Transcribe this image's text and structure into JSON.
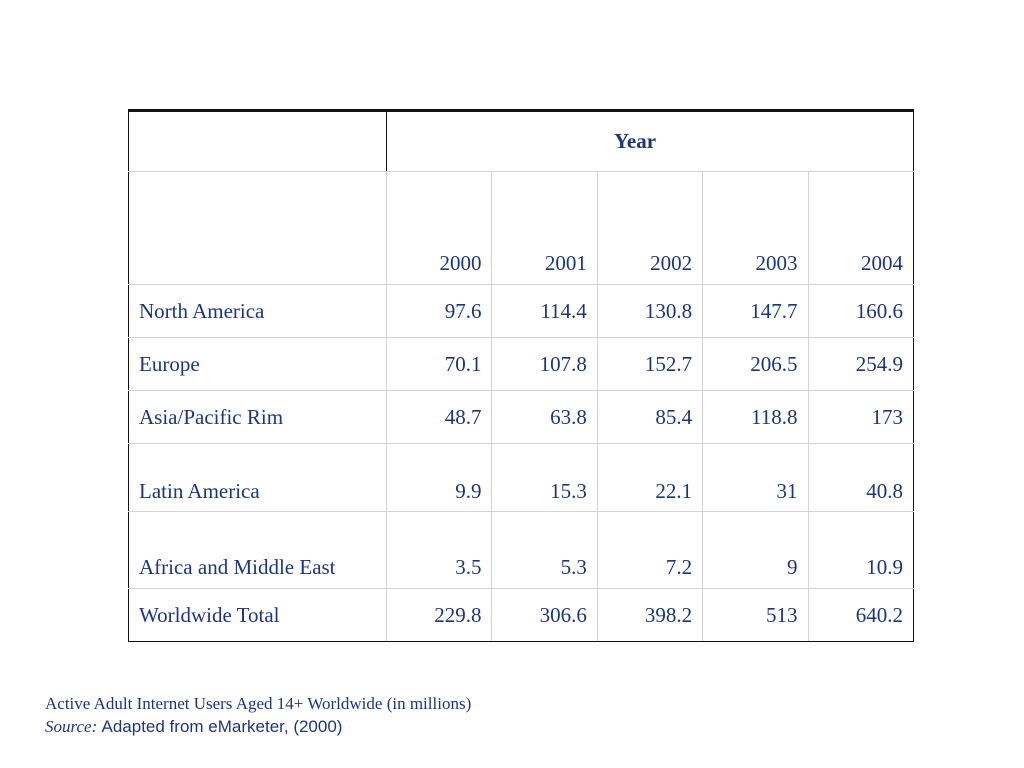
{
  "chart_data": {
    "type": "table",
    "header_group": "Year",
    "columns": [
      "2000",
      "2001",
      "2002",
      "2003",
      "2004"
    ],
    "rows": [
      {
        "label": "North America",
        "values": [
          "97.6",
          "114.4",
          "130.8",
          "147.7",
          "160.6"
        ]
      },
      {
        "label": "Europe",
        "values": [
          "70.1",
          "107.8",
          "152.7",
          "206.5",
          "254.9"
        ]
      },
      {
        "label": "Asia/Pacific Rim",
        "values": [
          "48.7",
          "63.8",
          "85.4",
          "118.8",
          "173"
        ]
      },
      {
        "label": "Latin America",
        "values": [
          "9.9",
          "15.3",
          "22.1",
          "31",
          "40.8"
        ]
      },
      {
        "label": "Africa and Middle East",
        "values": [
          "3.5",
          "5.3",
          "7.2",
          "9",
          "10.9"
        ]
      },
      {
        "label": "Worldwide Total",
        "values": [
          "229.8",
          "306.6",
          "398.2",
          "513",
          "640.2"
        ]
      }
    ]
  },
  "caption": {
    "title": "Active Adult Internet Users Aged 14+ Worldwide (in millions)",
    "source_label": "Source:",
    "source_text": "Adapted from eMarketer, (2000)"
  },
  "colors": {
    "text": "#1c3580",
    "rule": "#111111",
    "grid": "#d3d3d3"
  }
}
